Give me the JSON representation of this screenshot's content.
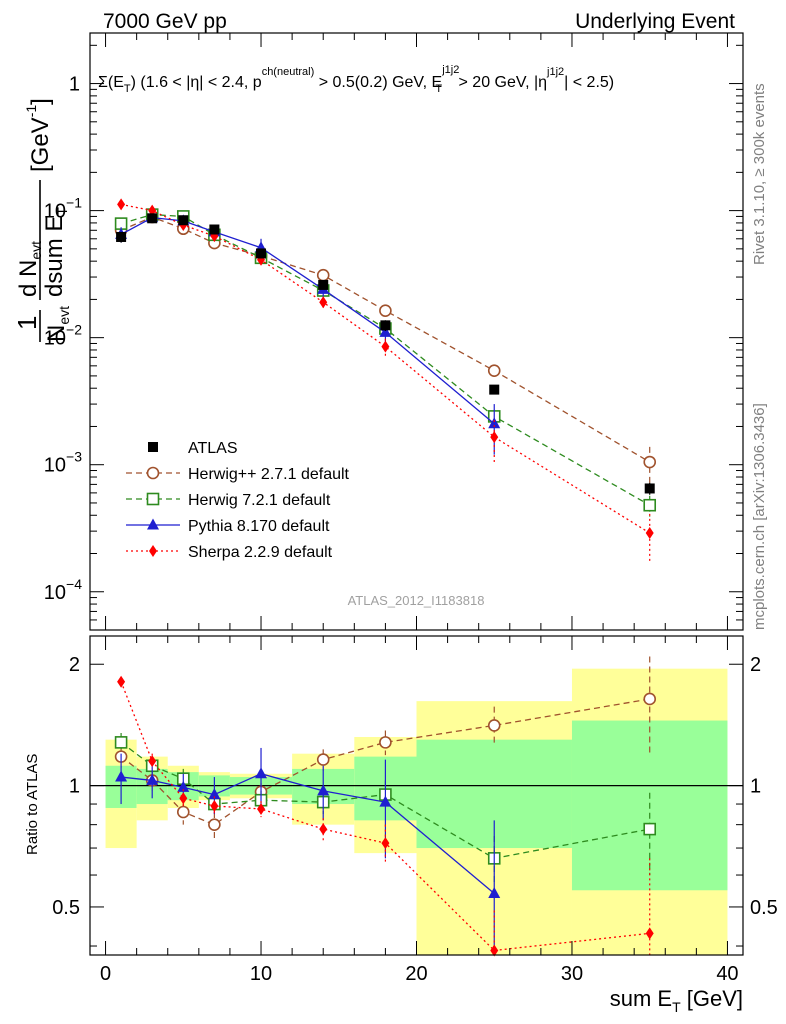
{
  "header": {
    "left": "7000 GeV pp",
    "right": "Underlying Event"
  },
  "side_labels": {
    "rivet": "Rivet 3.1.10, ≥ 300k events",
    "mcplots": "mcplots.cern.ch [arXiv:1306.3436]"
  },
  "chart_data": {
    "type": "scatter",
    "analysis_tag": "ATLAS_2012_I1183818",
    "cut_text": {
      "a": "Σ(E",
      "a_sub": "T",
      "b": ") (1.6 < |η| < 2.4, p",
      "b_sup": "ch(neutral)",
      "c": " > 0.5(0.2) GeV, E",
      "c_sup": "j1j2",
      "c_sub": "T",
      "d": " > 20 GeV, |η",
      "d_sup": "j1j2",
      "e": "| < 2.5)"
    },
    "ylabel_main": {
      "one": "1",
      "n": "N",
      "n_sub": "evt",
      "dn": "d N",
      "dn_sub": "evt",
      "den": "dsum E",
      "den_sub": "T",
      "unit": "[GeV",
      "unit_sup": "-1",
      "unit_end": "]"
    },
    "ylabel_ratio": "Ratio to ATLAS",
    "xlabel": {
      "text": "sum E",
      "sub": "T",
      "unit": " [GeV]"
    },
    "xlim": [
      -1,
      41
    ],
    "x_ticks": [
      0,
      10,
      20,
      30,
      40
    ],
    "main_ylim": [
      5e-05,
      2.5
    ],
    "main_yscale": "log",
    "main_y_ticks": [
      {
        "value": 1,
        "label": "1"
      },
      {
        "value": 0.1,
        "label": "10",
        "exp": "−1"
      },
      {
        "value": 0.01,
        "label": "10",
        "exp": "−2"
      },
      {
        "value": 0.001,
        "label": "10",
        "exp": "−3"
      },
      {
        "value": 0.0001,
        "label": "10",
        "exp": "−4"
      }
    ],
    "ratio_ylim": [
      0.38,
      2.35
    ],
    "ratio_yscale": "log",
    "ratio_y_ticks": [
      {
        "value": 0.5,
        "label": "0.5"
      },
      {
        "value": 1,
        "label": "1"
      },
      {
        "value": 2,
        "label": "2"
      }
    ],
    "bin_edges": [
      0,
      2,
      4,
      6,
      8,
      12,
      16,
      20,
      30,
      40
    ],
    "x": [
      1,
      3,
      5,
      7,
      10,
      14,
      18,
      25,
      35
    ],
    "data": {
      "name": "ATLAS",
      "values": [
        0.062,
        0.087,
        0.084,
        0.071,
        0.046,
        0.026,
        0.0125,
        0.0039,
        0.00065
      ],
      "errors": [
        0.006,
        0.005,
        0.004,
        0.004,
        0.003,
        0.002,
        0.0012,
        0.0003,
        7e-05
      ],
      "band_stat": [
        0.12,
        0.1,
        0.08,
        0.06,
        0.05,
        0.1,
        0.18,
        0.3,
        0.45
      ],
      "band_total": [
        0.3,
        0.18,
        0.12,
        0.08,
        0.07,
        0.2,
        0.32,
        0.62,
        0.95
      ]
    },
    "series": [
      {
        "name": "Herwig++ 2.7.1 default",
        "color": "#a0522d",
        "marker": "open-circle",
        "line": "dashed",
        "values": [
          0.07,
          0.089,
          0.072,
          0.0555,
          0.044,
          0.031,
          0.0163,
          0.0055,
          0.00105
        ],
        "errors": [
          0.005,
          0.004,
          0.003,
          0.003,
          0.0025,
          0.002,
          0.0012,
          0.0006,
          0.00033
        ],
        "ratio": [
          1.18,
          1.03,
          0.86,
          0.8,
          0.965,
          1.16,
          1.28,
          1.41,
          1.64
        ],
        "ratio_err": [
          0.07,
          0.06,
          0.06,
          0.06,
          0.05,
          0.07,
          0.09,
          0.16,
          0.45
        ]
      },
      {
        "name": "Herwig 7.2.1 default",
        "color": "#2e8b1f",
        "marker": "open-square",
        "line": "dashed",
        "values": [
          0.079,
          0.093,
          0.09,
          0.0645,
          0.0425,
          0.0235,
          0.0118,
          0.0024,
          0.00048
        ],
        "errors": [
          0.005,
          0.004,
          0.003,
          0.003,
          0.0025,
          0.002,
          0.001,
          0.0003,
          9e-05
        ],
        "ratio": [
          1.28,
          1.12,
          1.04,
          0.9,
          0.92,
          0.91,
          0.95,
          0.66,
          0.78
        ],
        "ratio_err": [
          0.07,
          0.06,
          0.06,
          0.05,
          0.05,
          0.06,
          0.08,
          0.09,
          0.18
        ]
      },
      {
        "name": "Pythia 8.170 default",
        "color": "#1f1fd0",
        "marker": "filled-triangle",
        "line": "solid",
        "values": [
          0.065,
          0.088,
          0.083,
          0.068,
          0.051,
          0.024,
          0.011,
          0.0021,
          null
        ],
        "errors": [
          0.009,
          0.007,
          0.006,
          0.006,
          0.009,
          0.003,
          0.0018,
          0.0009,
          null
        ],
        "ratio": [
          1.05,
          1.03,
          0.99,
          0.95,
          1.07,
          0.97,
          0.91,
          0.54,
          null
        ],
        "ratio_err": [
          0.15,
          0.1,
          0.08,
          0.1,
          0.17,
          0.15,
          0.25,
          0.28,
          null
        ]
      },
      {
        "name": "Sherpa 2.2.9 default",
        "color": "#ff0000",
        "marker": "filled-diamond",
        "line": "dotted",
        "values": [
          0.112,
          0.1,
          0.077,
          0.063,
          0.041,
          0.019,
          0.0085,
          0.00165,
          0.00029
        ],
        "errors": [
          0.004,
          0.004,
          0.003,
          0.003,
          0.002,
          0.0018,
          0.0013,
          0.0006,
          0.00012
        ],
        "ratio": [
          1.81,
          1.15,
          0.93,
          0.89,
          0.875,
          0.78,
          0.72,
          0.39,
          0.43
        ],
        "ratio_err": [
          0.05,
          0.05,
          0.05,
          0.05,
          0.04,
          0.05,
          0.08,
          0.1,
          0.23
        ]
      }
    ],
    "legend_placement": "lower-left",
    "grid": false
  }
}
